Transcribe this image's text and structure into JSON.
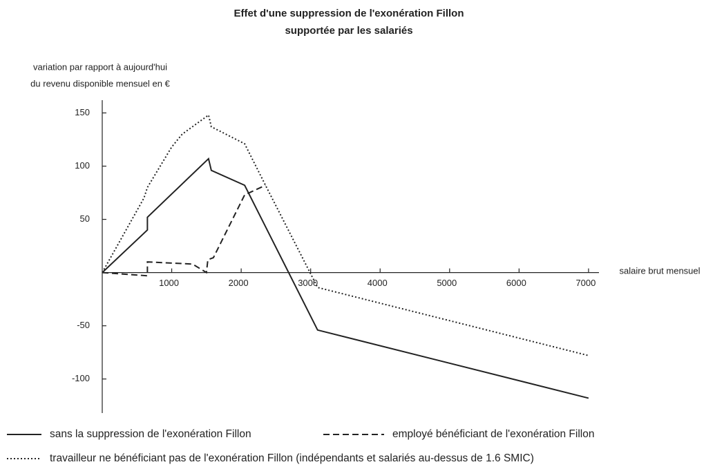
{
  "chart_data": {
    "type": "line",
    "title": "Effet d'une suppression de l'exonération Fillon",
    "subtitle": "supportée par les salariés",
    "y_label": [
      "variation par rapport à aujourd'hui",
      "du revenu disponible mensuel en €"
    ],
    "x_label": "salaire brut mensuel",
    "xlim": [
      0,
      7150
    ],
    "xticks": [
      1000,
      2000,
      3000,
      4000,
      5000,
      6000,
      7000
    ],
    "ylim": [
      -132,
      162
    ],
    "yticks": [
      -100,
      -50,
      50,
      100,
      150
    ],
    "grid": false,
    "series": [
      {
        "name": "sans la suppression de l'exonération Fillon",
        "color": "#222222",
        "style": "solid",
        "x": [
          0,
          650,
          650,
          1530,
          1570,
          2050,
          3100,
          7000
        ],
        "values": [
          0,
          40,
          52,
          107,
          96,
          82,
          -54,
          -118
        ]
      },
      {
        "name": "employé bénéficiant de l'exonération Fillon",
        "color": "#222222",
        "style": "dashed",
        "x": [
          0,
          650,
          650,
          1300,
          1450,
          1500,
          1520,
          1600,
          2050,
          2350
        ],
        "values": [
          0,
          -3,
          10,
          8,
          2,
          0,
          12,
          14,
          73,
          82
        ]
      },
      {
        "name": "travailleur ne bénéficiant pas de l'exonération Fillon (indépendants et salariés au-dessus de 1.6 SMIC)",
        "color": "#222222",
        "style": "dotted",
        "x": [
          0,
          600,
          650,
          1000,
          1150,
          1530,
          1570,
          2050,
          2350,
          3100,
          7000
        ],
        "values": [
          0,
          70,
          80,
          118,
          130,
          148,
          137,
          121,
          82,
          -14,
          -78
        ]
      }
    ]
  }
}
